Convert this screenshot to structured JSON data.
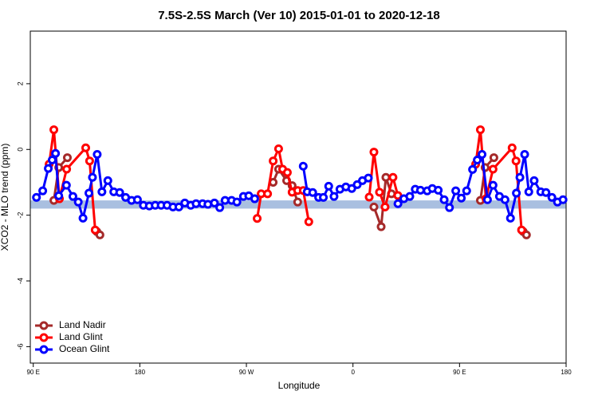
{
  "chart_data": {
    "type": "line",
    "title": "7.5S-2.5S March (Ver 10)   2015-01-01 to 2020-12-18",
    "xlabel": "Longitude",
    "ylabel": "XCO2 - MLO trend (ppm)",
    "xlim": [
      87.5,
      540
    ],
    "ylim": [
      -6.5,
      3.6
    ],
    "xticks": [
      {
        "value": 90,
        "label": "90 E"
      },
      180,
      {
        "value": 270,
        "label": "90 W"
      },
      {
        "value": 360,
        "label": "0"
      },
      {
        "value": 450,
        "label": "90 E"
      },
      {
        "value": 540,
        "label": "180"
      }
    ],
    "yticks": [
      -6,
      -4,
      -2,
      0,
      2
    ],
    "band": [
      -1.8,
      -1.55
    ],
    "band_color": "#a9bfe0",
    "legend": "bottom-left",
    "series": [
      {
        "name": "Land Nadir",
        "color": "#a52a2a",
        "x": [
          107.4,
          111.5,
          118.8,
          null,
          143.7,
          146.3,
          null,
          292.6,
          297.2,
          304,
          308.6,
          313.3,
          null,
          377.7,
          383.8,
          387.8,
          392.5,
          null,
          467.6,
          471.6,
          479,
          null,
          503.8,
          506.5
        ],
        "values": [
          -1.55,
          -0.55,
          -0.25,
          null,
          -2.5,
          -2.6,
          null,
          -1.0,
          -0.6,
          -0.95,
          -1.1,
          -1.6,
          null,
          -1.75,
          -2.35,
          -0.85,
          -1.35,
          null,
          -1.55,
          -0.55,
          -0.25,
          null,
          -2.5,
          -2.6
        ]
      },
      {
        "name": "Land Glint",
        "color": "#ff0000",
        "x": [
          103.4,
          107.4,
          112.1,
          118.2,
          134.3,
          137.6,
          142.3,
          null,
          279.1,
          282.5,
          287.9,
          292.6,
          297.2,
          300.6,
          304.6,
          308.6,
          313.3,
          318,
          322.7,
          null,
          373.7,
          377.7,
          382.4,
          387.1,
          393.8,
          397.9,
          null,
          463.6,
          467.6,
          472.3,
          478.3,
          494.4,
          497.7,
          502.4
        ],
        "values": [
          -0.45,
          0.6,
          -1.5,
          -0.6,
          0.05,
          -0.35,
          -2.45,
          null,
          -2.1,
          -1.35,
          -1.35,
          -0.35,
          0.02,
          -0.6,
          -0.7,
          -1.3,
          -1.25,
          -1.25,
          -2.2,
          null,
          -1.45,
          -0.08,
          -1.3,
          -1.75,
          -0.85,
          -1.4,
          null,
          -0.45,
          0.6,
          -1.5,
          -0.6,
          0.05,
          -0.35,
          -2.45
        ]
      },
      {
        "name": "Ocean Glint",
        "color": "#0000ff",
        "x": [
          92.7,
          98,
          102.7,
          106,
          108.8,
          111.5,
          118,
          123.5,
          128,
          132,
          137,
          140,
          144,
          148,
          153,
          158,
          163,
          168,
          173,
          178,
          183,
          188,
          193,
          198,
          203,
          208,
          213,
          218,
          223,
          227.5,
          233,
          237.5,
          243,
          247.5,
          252,
          257.5,
          262,
          267.5,
          272,
          277,
          null,
          318,
          321.4,
          326,
          331,
          335,
          339.5,
          344,
          349,
          354,
          359,
          363.6,
          368,
          373,
          null,
          398,
          403,
          408,
          412.6,
          417,
          422.7,
          427,
          432,
          437,
          441.5,
          446.8,
          451.5,
          456,
          461,
          465,
          469,
          473.6,
          478.3,
          483.7,
          488.4,
          493,
          498,
          501,
          505,
          508.5,
          513,
          518.6,
          523,
          528,
          532.7,
          537.4
        ],
        "values": [
          -1.46,
          -1.26,
          -0.58,
          -0.32,
          -0.12,
          -1.41,
          -1.09,
          -1.43,
          -1.6,
          -2.09,
          -1.33,
          -0.85,
          -0.15,
          -1.29,
          -0.95,
          -1.29,
          -1.31,
          -1.46,
          -1.55,
          -1.53,
          -1.7,
          -1.72,
          -1.7,
          -1.7,
          -1.7,
          -1.75,
          -1.75,
          -1.63,
          -1.7,
          -1.65,
          -1.65,
          -1.67,
          -1.63,
          -1.77,
          -1.55,
          -1.55,
          -1.6,
          -1.43,
          -1.41,
          -1.5,
          null,
          -0.51,
          -1.29,
          -1.31,
          -1.46,
          -1.46,
          -1.12,
          -1.43,
          -1.21,
          -1.14,
          -1.19,
          -1.07,
          -0.95,
          -0.87,
          null,
          -1.65,
          -1.5,
          -1.43,
          -1.21,
          -1.24,
          -1.26,
          -1.19,
          -1.24,
          -1.53,
          -1.77,
          -1.26,
          -1.48,
          -1.26,
          -0.61,
          -0.32,
          -0.15,
          -1.53,
          -1.09,
          -1.43,
          -1.53,
          -2.09,
          -1.33,
          -0.85,
          -0.15,
          -1.29,
          -0.95,
          -1.29,
          -1.31,
          -1.46,
          -1.6,
          -1.53
        ]
      }
    ]
  }
}
